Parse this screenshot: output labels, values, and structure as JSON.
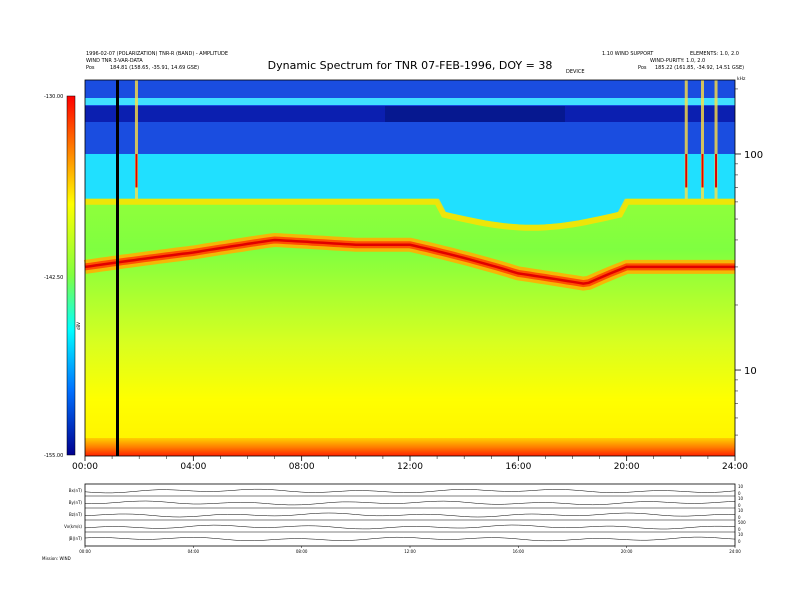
{
  "chart_data": {
    "type": "heatmap",
    "title": "Dynamic Spectrum for TNR 07-FEB-1996, DOY = 38",
    "header": {
      "left_line1": "1996-02-07 (POLARIZATION) TNR-R (BAND) - AMPLITUDE",
      "left_line2": "WIND TNR 3-VAR-DATA",
      "pos_left_label": "Pos",
      "pos_left_value": "184.81 (158.65, -35.91, 14.69 GSE)",
      "right_line1": "1.10 WIND SUPPORT",
      "right_line2": "ELEMENTS: 1.0, 2.0",
      "right_line3": "WIND-PURITY: 1.0, 2.0",
      "pos_right_label": "Pos",
      "pos_right_value": "185.22 (161.85, -34.92, 14.51 GSE)",
      "center_tag": "DEVICE"
    },
    "x_ticks": [
      "00:00",
      "04:00",
      "08:00",
      "12:00",
      "16:00",
      "20:00",
      "24:00"
    ],
    "x_range_hours": [
      0,
      24
    ],
    "y_scale": "log",
    "y_unit": "kHz",
    "y_range_khz": [
      4,
      220
    ],
    "y_ticks": [
      10,
      100
    ],
    "colorbar": {
      "ticks": [
        "-130.00",
        "-142.50",
        "-155.00"
      ],
      "label": "dBV",
      "range": [
        -155,
        -130
      ],
      "colors": [
        "#00007f",
        "#0000ff",
        "#00bfff",
        "#00ffff",
        "#7fff7f",
        "#ffff00",
        "#ff7f00",
        "#ff0000",
        "#7f0000"
      ]
    },
    "marker_line_hours": 1.2,
    "bands": [
      {
        "name": "background top",
        "from_khz": 220,
        "to_khz": 100,
        "colors": [
          "#0a2fd6",
          "#1a4de0"
        ]
      },
      {
        "name": "cyan",
        "from_khz": 100,
        "to_khz": 62,
        "colors": [
          "#10c8f0",
          "#20e0ff"
        ]
      },
      {
        "name": "plasma line",
        "center_hours": [
          0,
          4,
          7,
          10,
          12,
          16,
          18.5,
          20,
          24
        ],
        "center_khz": [
          30,
          35,
          40,
          38,
          38,
          28,
          25,
          30,
          30
        ]
      }
    ],
    "bursts_hours": [
      1.9,
      22.2,
      22.8,
      23.3
    ],
    "bottom_panel": {
      "rows": [
        {
          "label": "Bx(nT)",
          "right_ticks": [
            "10",
            "0"
          ]
        },
        {
          "label": "By(nT)",
          "right_ticks": [
            "10",
            "0"
          ]
        },
        {
          "label": "Bz(nT)",
          "right_ticks": [
            "10",
            "0"
          ]
        },
        {
          "label": "Vx(km/s)",
          "right_ticks": [
            "500",
            "0"
          ]
        },
        {
          "label": "|B|(nT)",
          "right_ticks": [
            "10",
            "0"
          ]
        }
      ],
      "x_ticks": [
        "00:00",
        "04:00",
        "08:00",
        "12:00",
        "16:00",
        "20:00",
        "24:00"
      ],
      "footer_label": "Mission: WIND"
    }
  }
}
